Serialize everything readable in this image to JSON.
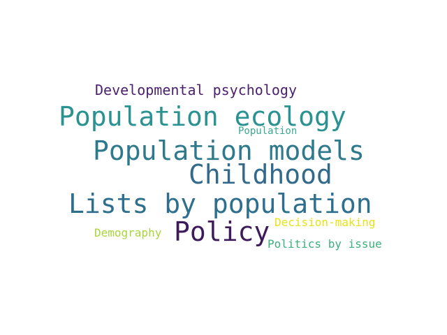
{
  "words": [
    {
      "text": "Developmental psychology",
      "color": "#4a1f6e"
    },
    {
      "text": "Population ecology",
      "color": "#2a9290"
    },
    {
      "text": "Population",
      "color": "#3aa891"
    },
    {
      "text": "Population models",
      "color": "#2e7a8c"
    },
    {
      "text": "Childhood",
      "color": "#336a8c"
    },
    {
      "text": "Lists by population",
      "color": "#2e6f8e"
    },
    {
      "text": "Policy",
      "color": "#3d1a5a"
    },
    {
      "text": "Decision-making",
      "color": "#e8e219"
    },
    {
      "text": "Demography",
      "color": "#a7d63a"
    },
    {
      "text": "Politics by issue",
      "color": "#3bb07a"
    }
  ]
}
